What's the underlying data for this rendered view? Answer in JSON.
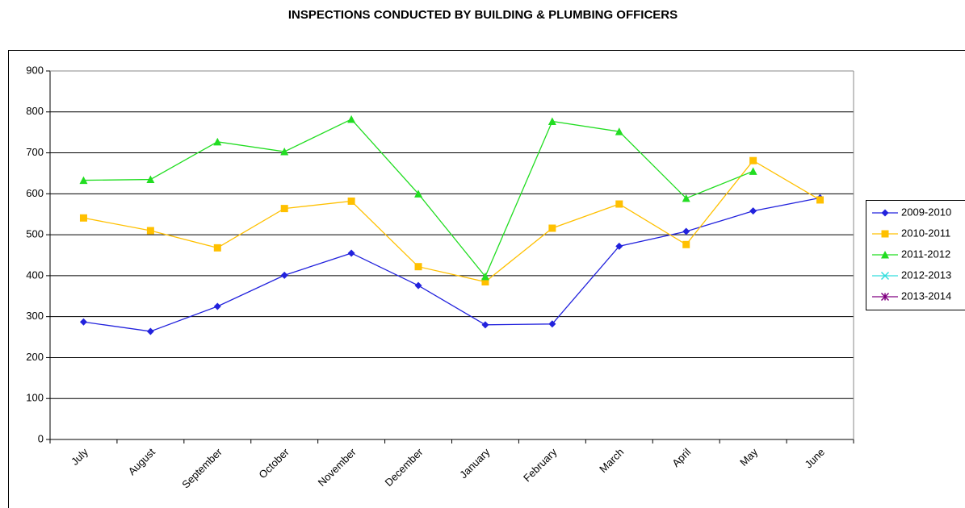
{
  "chart_data": {
    "type": "line",
    "title": "INSPECTIONS CONDUCTED BY BUILDING & PLUMBING OFFICERS",
    "categories": [
      "July",
      "August",
      "September",
      "October",
      "November",
      "December",
      "January",
      "February",
      "March",
      "April",
      "May",
      "June"
    ],
    "series": [
      {
        "name": "2009-2010",
        "color": "#2222dd",
        "marker": "diamond",
        "values": [
          287,
          264,
          325,
          401,
          455,
          376,
          280,
          282,
          472,
          508,
          558,
          590
        ]
      },
      {
        "name": "2010-2011",
        "color": "#ffc000",
        "marker": "square",
        "values": [
          541,
          510,
          468,
          564,
          582,
          422,
          385,
          516,
          575,
          476,
          681,
          585
        ]
      },
      {
        "name": "2011-2012",
        "color": "#22dd22",
        "marker": "triangle",
        "values": [
          633,
          635,
          727,
          703,
          782,
          600,
          398,
          777,
          752,
          589,
          655,
          null
        ]
      },
      {
        "name": "2012-2013",
        "color": "#33dddd",
        "marker": "x",
        "values": [
          null,
          null,
          null,
          null,
          null,
          null,
          null,
          null,
          null,
          null,
          null,
          null
        ]
      },
      {
        "name": "2013-2014",
        "color": "#800080",
        "marker": "star",
        "values": [
          null,
          null,
          null,
          null,
          null,
          null,
          null,
          null,
          null,
          null,
          null,
          null
        ]
      }
    ],
    "ylim": [
      0,
      900
    ],
    "yticks": [
      0,
      100,
      200,
      300,
      400,
      500,
      600,
      700,
      800,
      900
    ],
    "grid": true,
    "legend": "right"
  }
}
